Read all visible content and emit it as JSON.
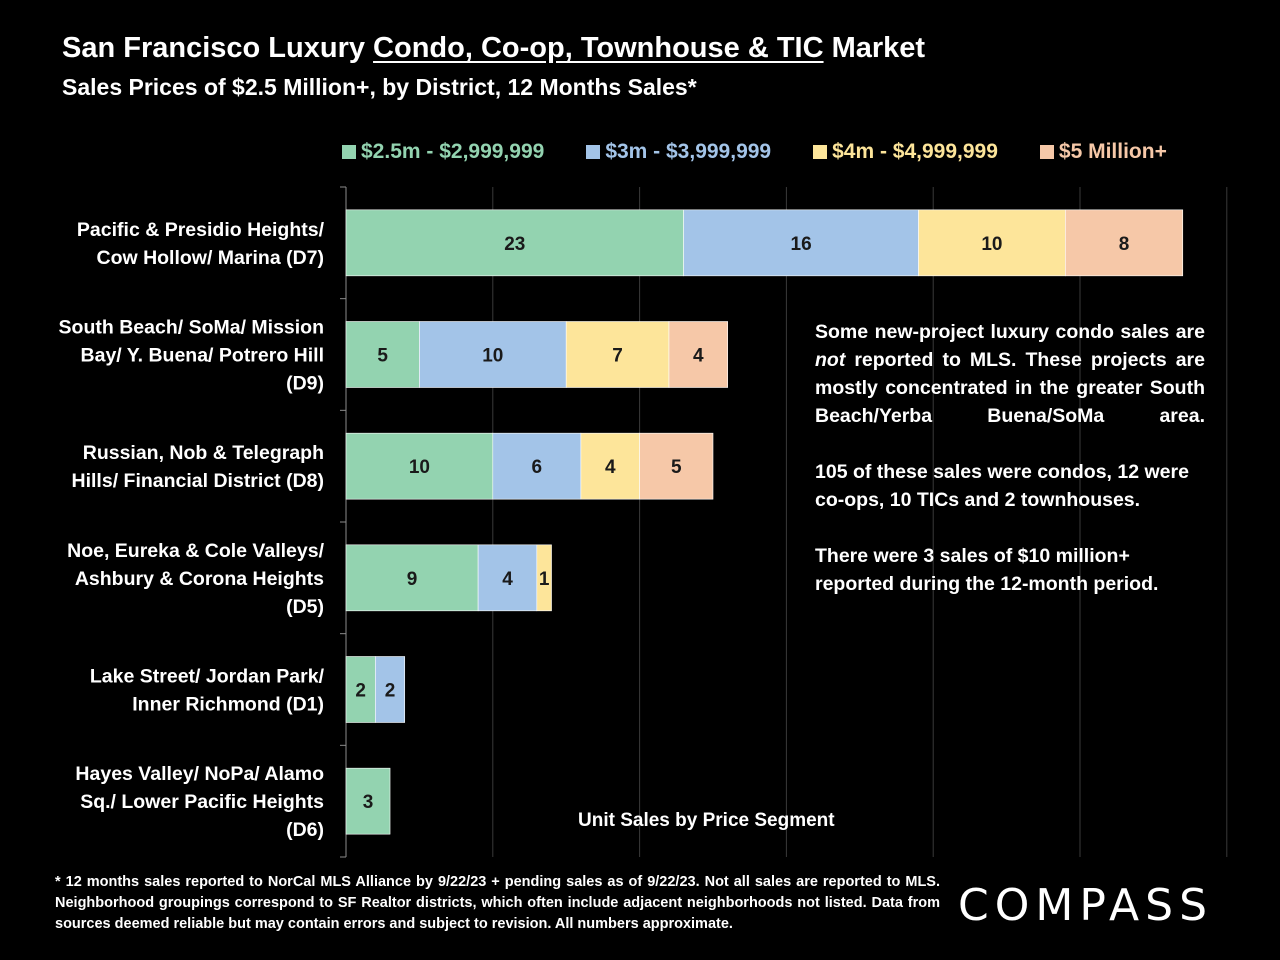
{
  "header": {
    "title_pre": "San Francisco Luxury ",
    "title_underlined": "Condo, Co-op, Townhouse & TIC",
    "title_post": " Market",
    "subtitle": "Sales Prices of $2.5 Million+, by District, 12 Months Sales*"
  },
  "chart_data": {
    "type": "bar",
    "orientation": "horizontal",
    "stacked": true,
    "title": "San Francisco Luxury Condo, Co-op, Townhouse & TIC Market",
    "xlabel": "Unit Sales by Price Segment",
    "ylabel": "",
    "xlim": [
      0,
      60
    ],
    "grid": true,
    "legend_position": "top",
    "categories": [
      [
        "Pacific & Presidio Heights/",
        "Cow Hollow/ Marina (D7)"
      ],
      [
        "South Beach/ SoMa/ Mission",
        "Bay/ Y. Buena/ Potrero Hill",
        "(D9)"
      ],
      [
        "Russian, Nob & Telegraph",
        "Hills/ Financial District (D8)"
      ],
      [
        "Noe, Eureka & Cole Valleys/",
        "Ashbury & Corona Heights",
        "(D5)"
      ],
      [
        "Lake Street/ Jordan Park/",
        "Inner Richmond (D1)"
      ],
      [
        "Hayes Valley/ NoPa/ Alamo",
        "Sq./ Lower Pacific Heights",
        "(D6)"
      ]
    ],
    "series": [
      {
        "name": "$2.5m - $2,999,999",
        "color": "#93d3b0",
        "label_color": "#93d3b0",
        "values": [
          23,
          5,
          10,
          9,
          2,
          3
        ]
      },
      {
        "name": "$3m - $3,999,999",
        "color": "#a3c4e8",
        "label_color": "#a3c4e8",
        "values": [
          16,
          10,
          6,
          4,
          2,
          0
        ]
      },
      {
        "name": "$4m - $4,999,999",
        "color": "#fde59a",
        "label_color": "#fde59a",
        "values": [
          10,
          7,
          4,
          1,
          0,
          0
        ]
      },
      {
        "name": "$5 Million+",
        "color": "#f6c8a8",
        "label_color": "#f6c8a8",
        "values": [
          8,
          4,
          5,
          0,
          0,
          0
        ]
      }
    ]
  },
  "note": {
    "p1_a": "Some new-project luxury condo sales are ",
    "p1_em": "not",
    "p1_b": " reported to MLS. These projects are mostly concentrated in the greater South Beach/Yerba Buena/SoMa area.",
    "p2": "105 of these sales were condos, 12 were co-ops, 10 TICs and 2 townhouses.",
    "p3": "There were 3 sales of $10 million+ reported during the 12-month period."
  },
  "footnote": "* 12 months sales reported to NorCal MLS Alliance by 9/22/23 + pending sales as of 9/22/23. Not all sales are reported to MLS. Neighborhood groupings correspond to SF Realtor districts, which often include adjacent neighborhoods not listed. Data from sources deemed reliable but may contain errors and subject to revision. All numbers approximate.",
  "logo": "COMPASS",
  "colors": {
    "background": "#000000",
    "text": "#ffffff",
    "grid": "#3a3a3a"
  }
}
